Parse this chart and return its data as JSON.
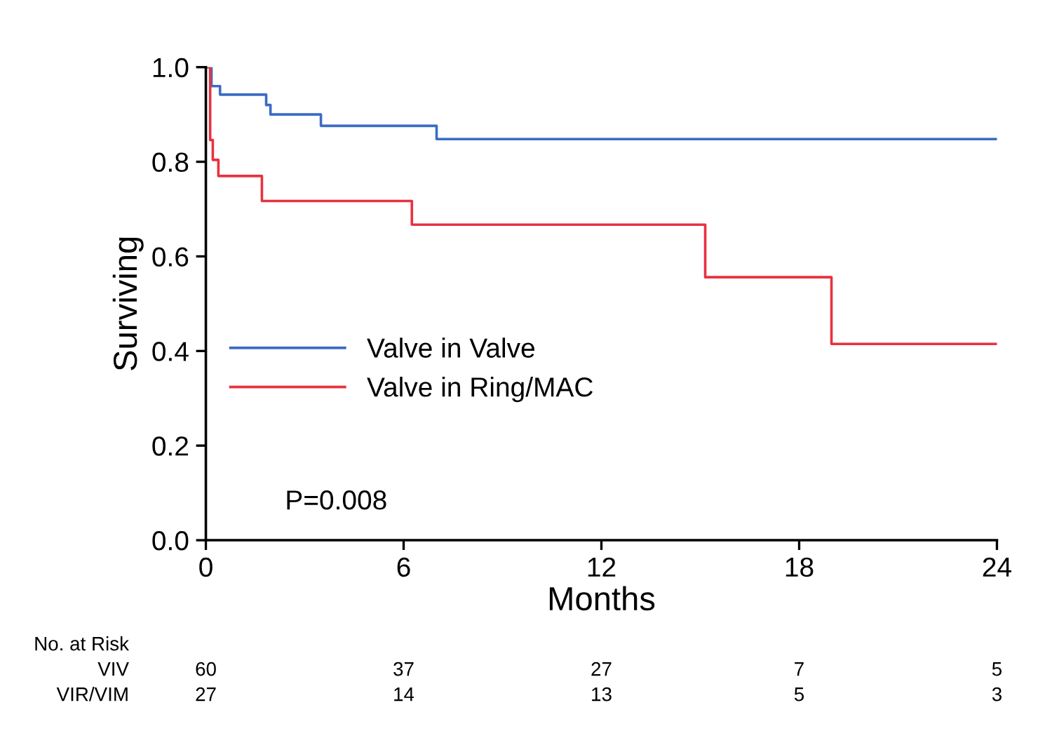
{
  "chart_data": {
    "type": "step",
    "xlabel": "Months",
    "ylabel": "Surviving",
    "xlim": [
      0,
      24
    ],
    "ylim": [
      0,
      1.0
    ],
    "xticks": [
      0,
      6,
      12,
      18,
      24
    ],
    "yticks": [
      {
        "value": 0,
        "label": "0.0"
      },
      {
        "value": 0.2,
        "label": "0.2"
      },
      {
        "value": 0.4,
        "label": "0.4"
      },
      {
        "value": 0.6,
        "label": "0.6"
      },
      {
        "value": 0.8,
        "label": "0.8"
      },
      {
        "value": 1.0,
        "label": "1.0"
      }
    ],
    "grid": false,
    "legend": "left",
    "marker": "none",
    "line_style": "solid",
    "series": [
      {
        "name": "Valve in Valve",
        "color": "#3b6cc4",
        "x": [
          0,
          0.17,
          0.43,
          1.83,
          1.96,
          3.49,
          7.0,
          24
        ],
        "values": [
          1.0,
          0.96,
          0.942,
          0.92,
          0.9,
          0.876,
          0.848,
          0.848
        ]
      },
      {
        "name": "Valve in Ring/MAC",
        "color": "#e8323f",
        "x": [
          0,
          0.13,
          0.21,
          0.38,
          1.7,
          6.25,
          15.15,
          18.98,
          24
        ],
        "values": [
          1.0,
          0.846,
          0.804,
          0.77,
          0.717,
          0.667,
          0.556,
          0.415,
          0.415
        ]
      }
    ],
    "annotations": [
      "P=0.008",
      "No. at Risk",
      "VIV",
      "VIR/VIM",
      "60",
      "37",
      "27",
      "7",
      "5",
      "27",
      "14",
      "13",
      "5",
      "3"
    ]
  }
}
